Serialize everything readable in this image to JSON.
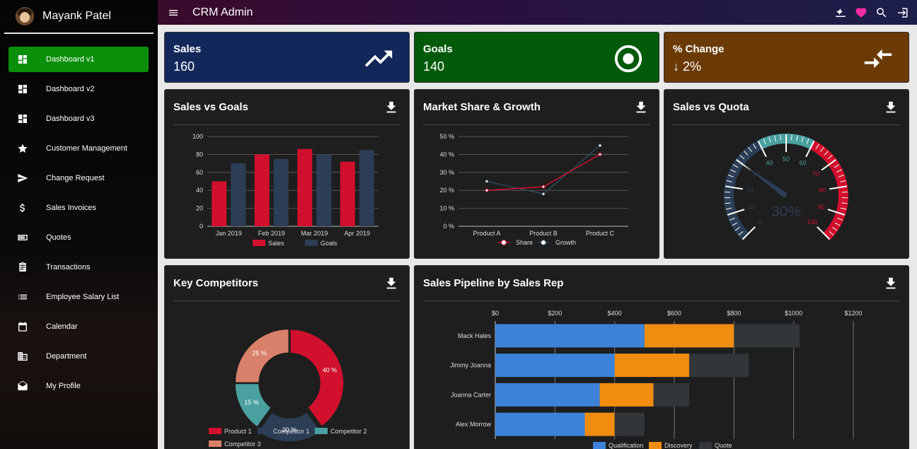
{
  "profile": {
    "name": "Mayank Patel"
  },
  "sidebar": {
    "items": [
      {
        "label": "Dashboard v1",
        "icon": "dashboard-icon"
      },
      {
        "label": "Dashboard v2",
        "icon": "dashboard-icon"
      },
      {
        "label": "Dashboard v3",
        "icon": "dashboard-icon"
      },
      {
        "label": "Customer Management",
        "icon": "star-icon"
      },
      {
        "label": "Change Request",
        "icon": "send-icon"
      },
      {
        "label": "Sales Invoices",
        "icon": "dollar-icon"
      },
      {
        "label": "Quotes",
        "icon": "quote-icon"
      },
      {
        "label": "Transactions",
        "icon": "clipboard-icon"
      },
      {
        "label": "Employee Salary List",
        "icon": "list-icon"
      },
      {
        "label": "Calendar",
        "icon": "calendar-icon"
      },
      {
        "label": "Department",
        "icon": "building-icon"
      },
      {
        "label": "My Profile",
        "icon": "mail-open-icon"
      }
    ]
  },
  "topbar": {
    "title": "CRM Admin"
  },
  "stats": {
    "sales": {
      "label": "Sales",
      "value": "160",
      "color": "#13285a"
    },
    "goals": {
      "label": "Goals",
      "value": "140",
      "color": "#005a0a"
    },
    "change": {
      "label": "% Change",
      "value": "↓ 2%",
      "color": "#6b3a06"
    }
  },
  "panels": {
    "sales_vs_goals": "Sales vs Goals",
    "market_share": "Market Share & Growth",
    "sales_vs_quota": "Sales vs Quota",
    "competitors": "Key Competitors",
    "pipeline": "Sales Pipeline by Sales Rep"
  },
  "chart_data": [
    {
      "id": "sales_vs_goals",
      "type": "bar",
      "categories": [
        "Jan 2019",
        "Feb 2019",
        "Mar 2019",
        "Apr 2019"
      ],
      "series": [
        {
          "name": "Sales",
          "values": [
            50,
            80,
            86,
            72
          ],
          "color": "#d0102c"
        },
        {
          "name": "Goals",
          "values": [
            70,
            75,
            80,
            85
          ],
          "color": "#2c3e56"
        }
      ],
      "ylim": [
        0,
        100
      ],
      "yticks": [
        0,
        20,
        40,
        60,
        80,
        100
      ]
    },
    {
      "id": "market_share",
      "type": "line",
      "categories": [
        "Product A",
        "Product B",
        "Product C"
      ],
      "series": [
        {
          "name": "Share",
          "values": [
            20,
            22,
            40
          ],
          "color": "#d0102c"
        },
        {
          "name": "Growth",
          "values": [
            25,
            18,
            45
          ],
          "color": "#2c4a5a"
        }
      ],
      "ylim": [
        0,
        50
      ],
      "yticks": [
        "0 %",
        "10 %",
        "20 %",
        "30 %",
        "40 %",
        "50 %"
      ]
    },
    {
      "id": "sales_vs_quota",
      "type": "gauge",
      "value": 30,
      "value_label": "30%",
      "min": 0,
      "max": 100,
      "tick_labels": [
        "0",
        "10",
        "20",
        "30",
        "40",
        "50",
        "60",
        "70",
        "80",
        "90",
        "100"
      ]
    },
    {
      "id": "competitors",
      "type": "pie",
      "slices": [
        {
          "name": "Product 1",
          "value": 40,
          "label": "40 %",
          "color": "#d0102c"
        },
        {
          "name": "Competitor 1",
          "value": 20,
          "label": "20 %",
          "color": "#2c3e56"
        },
        {
          "name": "Competitor 2",
          "value": 15,
          "label": "15 %",
          "color": "#4aa0a0"
        },
        {
          "name": "Competitor 3",
          "value": 25,
          "label": "25 %",
          "color": "#d9806a"
        }
      ]
    },
    {
      "id": "pipeline",
      "type": "bar",
      "orientation": "horizontal",
      "stacked": true,
      "categories": [
        "Mack Hales",
        "Jimmy Joanna",
        "Joanna Carter",
        "Alex Morrow"
      ],
      "series": [
        {
          "name": "Qualification",
          "values": [
            500,
            400,
            350,
            300
          ],
          "color": "#3b82d8"
        },
        {
          "name": "Discovery",
          "values": [
            300,
            250,
            180,
            100
          ],
          "color": "#f08c10"
        },
        {
          "name": "Quote",
          "values": [
            220,
            200,
            120,
            100
          ],
          "color": "#323638"
        }
      ],
      "xlim": [
        0,
        1200
      ],
      "xticks": [
        "$0",
        "$200",
        "$400",
        "$600",
        "$800",
        "$1000",
        "$1200"
      ]
    }
  ]
}
